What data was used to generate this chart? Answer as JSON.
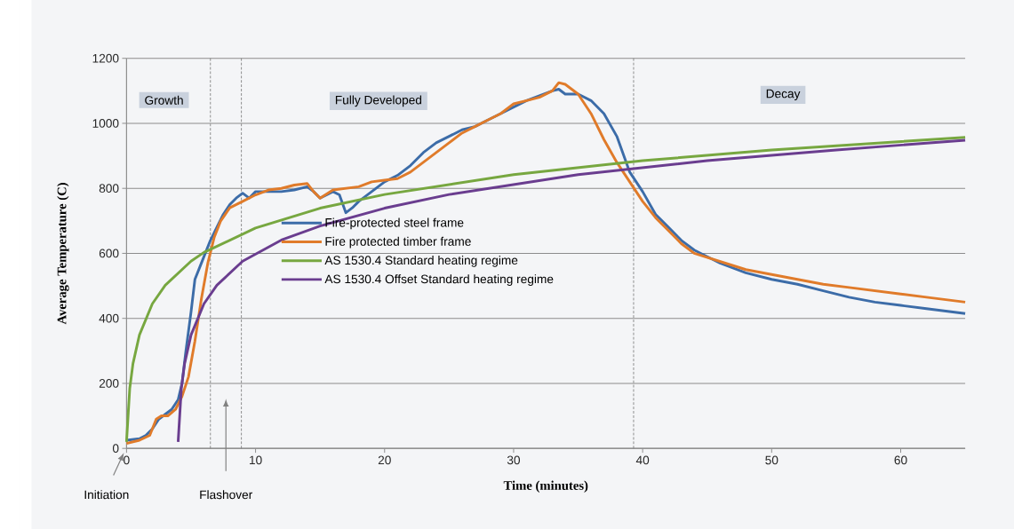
{
  "chart_data": {
    "type": "line",
    "xlabel": "Time (minutes)",
    "ylabel": "Average Temperature (C)",
    "xlim": [
      0,
      65
    ],
    "xticks": [
      0,
      10,
      20,
      30,
      40,
      50,
      60
    ],
    "ylim": [
      0,
      1200
    ],
    "yticks": [
      0,
      200,
      400,
      600,
      800,
      1000,
      1200
    ],
    "grid": "y",
    "legend": "center",
    "marker": "none",
    "line_style": "solid",
    "series": [
      {
        "name": "Fire-protected steel frame",
        "color": "#3c6ca8",
        "x": [
          0,
          1,
          1.5,
          2,
          2.5,
          3,
          3.5,
          4,
          4.3,
          4.6,
          5,
          5.3,
          5.7,
          6,
          6.5,
          7,
          7.5,
          8,
          8.5,
          9,
          9.5,
          10,
          11,
          12,
          13,
          14,
          14.5,
          15,
          16,
          16.5,
          17,
          17.5,
          18,
          19,
          20,
          21,
          22,
          23,
          24,
          25,
          26,
          27,
          28,
          29,
          30,
          31,
          32,
          33,
          33.5,
          34,
          35,
          36,
          37,
          38,
          39,
          40,
          41,
          42,
          43,
          44,
          46,
          48,
          50,
          52,
          54,
          56,
          58,
          60,
          62,
          65
        ],
        "values": [
          25,
          30,
          40,
          60,
          90,
          105,
          120,
          150,
          200,
          300,
          420,
          520,
          560,
          590,
          640,
          680,
          720,
          750,
          770,
          785,
          770,
          790,
          790,
          790,
          795,
          805,
          790,
          770,
          790,
          780,
          725,
          740,
          760,
          790,
          820,
          840,
          870,
          910,
          940,
          960,
          980,
          990,
          1010,
          1030,
          1050,
          1070,
          1085,
          1100,
          1105,
          1090,
          1090,
          1070,
          1030,
          960,
          850,
          790,
          720,
          680,
          640,
          610,
          570,
          540,
          520,
          505,
          485,
          465,
          450,
          440,
          430,
          415
        ]
      },
      {
        "name": "Fire protected timber frame",
        "color": "#e07b2a",
        "x": [
          0,
          1,
          1.8,
          2.3,
          2.7,
          3.2,
          3.8,
          4.3,
          4.8,
          5.3,
          5.8,
          6.3,
          6.8,
          7.3,
          8,
          9,
          10,
          11,
          12,
          13,
          14,
          14.5,
          15,
          16,
          17,
          18,
          19,
          20,
          21,
          22,
          23,
          24,
          25,
          26,
          27,
          28,
          29,
          30,
          31,
          32,
          33,
          33.5,
          34,
          35,
          36,
          37,
          38,
          39,
          40,
          41,
          42,
          43,
          44,
          46,
          48,
          50,
          52,
          54,
          56,
          58,
          60,
          62,
          65
        ],
        "values": [
          15,
          25,
          40,
          90,
          100,
          100,
          120,
          160,
          220,
          330,
          460,
          570,
          650,
          700,
          740,
          760,
          780,
          795,
          800,
          810,
          815,
          790,
          770,
          795,
          800,
          805,
          820,
          825,
          830,
          850,
          880,
          910,
          940,
          970,
          990,
          1010,
          1030,
          1060,
          1070,
          1080,
          1100,
          1125,
          1120,
          1090,
          1030,
          950,
          880,
          820,
          760,
          710,
          670,
          630,
          600,
          575,
          550,
          535,
          520,
          505,
          495,
          485,
          475,
          465,
          450
        ]
      },
      {
        "name": "AS 1530.4 Standard heating regime",
        "color": "#77a740",
        "x": [
          0,
          0.25,
          0.5,
          1,
          2,
          3,
          5,
          6,
          10,
          15,
          20,
          30,
          40,
          50,
          65
        ],
        "values": [
          20,
          185,
          261,
          349,
          445,
          502,
          576,
          603,
          678,
          739,
          781,
          842,
          885,
          918,
          957
        ]
      },
      {
        "name": "AS 1530.4 Offset Standard heating regime",
        "color": "#6a3d8f",
        "x": [
          4,
          4.25,
          4.5,
          5,
          6,
          7,
          9,
          12,
          15,
          20,
          25,
          35,
          45,
          55,
          65
        ],
        "values": [
          20,
          185,
          261,
          349,
          445,
          502,
          576,
          641,
          684,
          739,
          781,
          842,
          885,
          918,
          948
        ]
      }
    ],
    "ref_lines": [
      {
        "axis": "x",
        "value": 6.5,
        "color": "#808080",
        "line_style": "dashed"
      },
      {
        "axis": "x",
        "value": 8.9,
        "color": "#808080",
        "line_style": "dashed"
      },
      {
        "axis": "x",
        "value": 39.3,
        "color": "#808080",
        "line_style": "dashed"
      }
    ],
    "annotations": [
      "Growth",
      "Fully Developed",
      "Decay",
      "Initiation",
      "Flashover"
    ]
  }
}
